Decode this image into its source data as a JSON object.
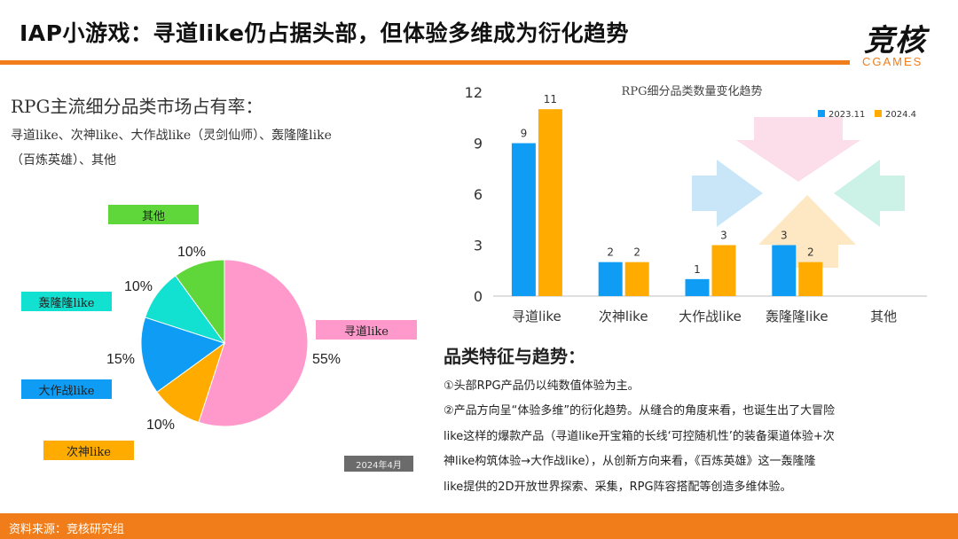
{
  "header": {
    "title": "IAP小游戏：寻道like仍占据头部，但体验多维成为衍化趋势",
    "logo_main": "竞核",
    "logo_sub": "CGAMES"
  },
  "left_panel": {
    "heading": "RPG主流细分品类市场占有率：",
    "categories_line1": "寻道like、次神like、大作战like（灵剑仙师）、轰隆隆like",
    "categories_line2": "（百炼英雄）、其他",
    "date_badge": "2024年4月"
  },
  "colors": {
    "accent": "#f07d1a",
    "pink": "#ff99cc",
    "orange": "#ffab00",
    "blue": "#0f9cf5",
    "cyan": "#12e0d0",
    "green": "#5fd63a",
    "bar_blue": "#0f9cf5",
    "bar_orange": "#ffab00"
  },
  "chart_data": [
    {
      "type": "pie",
      "labels": [
        "寻道like",
        "次神like",
        "大作战like",
        "轰隆隆like",
        "其他"
      ],
      "values": [
        55,
        10,
        15,
        10,
        10
      ],
      "value_labels": [
        "55%",
        "10%",
        "15%",
        "10%",
        "10%"
      ],
      "colors": [
        "#ff99cc",
        "#ffab00",
        "#0f9cf5",
        "#12e0d0",
        "#5fd63a"
      ]
    },
    {
      "type": "bar",
      "title": "RPG细分品类数量变化趋势",
      "categories": [
        "寻道like",
        "次神like",
        "大作战like",
        "轰隆隆like",
        "其他"
      ],
      "series": [
        {
          "name": "2023.11",
          "values": [
            9,
            2,
            1,
            3,
            null
          ],
          "color": "#0f9cf5"
        },
        {
          "name": "2024.4",
          "values": [
            11,
            2,
            3,
            2,
            null
          ],
          "color": "#ffab00"
        }
      ],
      "y_ticks": [
        "0",
        "3",
        "6",
        "9",
        "12"
      ],
      "ylim": [
        0,
        12
      ],
      "legend_position": "top-right",
      "grid": false
    }
  ],
  "trends": {
    "heading": "品类特征与趋势：",
    "lines": [
      "①头部RPG产品仍以纯数值体验为主。",
      "②产品方向呈“体验多维”的衍化趋势。从缝合的角度来看，也诞生出了大冒险",
      "like这样的爆款产品（寻道like开宝箱的长线‘可控随机性’的装备渠道体验+次",
      "神like构筑体验→大作战like），从创新方向来看，《百炼英雄》这一轰隆隆",
      "like提供的2D开放世界探索、采集，RPG阵容搭配等创造多维体验。"
    ]
  },
  "footer": {
    "source": "资料来源：竞核研究组"
  }
}
